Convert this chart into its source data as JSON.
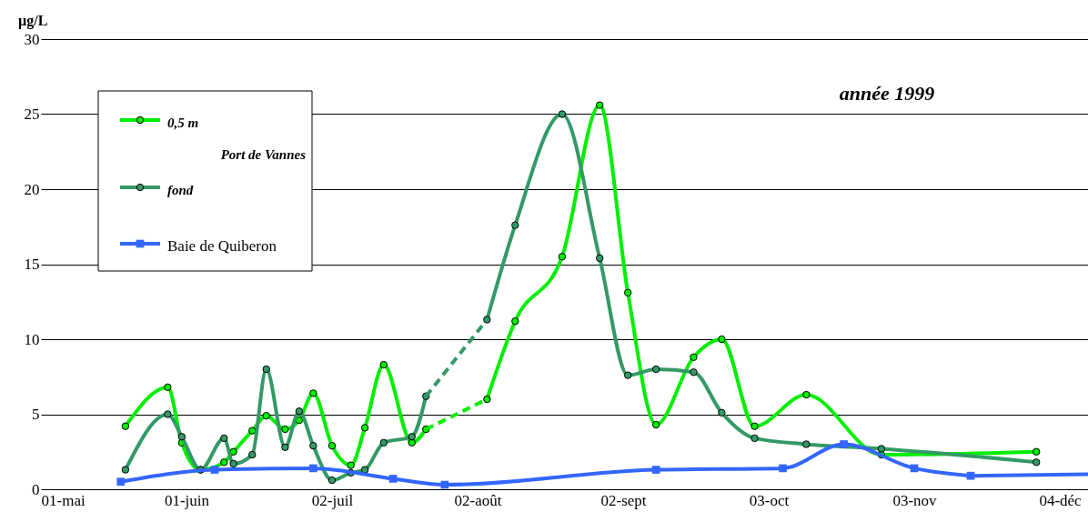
{
  "chart_data": {
    "type": "line",
    "ylabel": "µg/L",
    "legend_title": "Port de Vannes",
    "annotations": [
      "année 1999"
    ],
    "xlim": [
      "1999-05-01",
      "1999-12-10"
    ],
    "xticks": [
      {
        "value": "1999-05-01",
        "label": "01-mai"
      },
      {
        "value": "1999-06-01",
        "label": "01-juin"
      },
      {
        "value": "1999-07-02",
        "label": "02-juil"
      },
      {
        "value": "1999-08-02",
        "label": "02-août"
      },
      {
        "value": "1999-09-02",
        "label": "02-sept"
      },
      {
        "value": "1999-10-03",
        "label": "03-oct"
      },
      {
        "value": "1999-11-03",
        "label": "03-nov"
      },
      {
        "value": "1999-12-04",
        "label": "04-déc"
      }
    ],
    "ylim": [
      0,
      30
    ],
    "yticks": [
      0,
      5,
      10,
      15,
      20,
      25,
      30
    ],
    "grid": "y",
    "legend": "top left",
    "series": [
      {
        "name": "0,5 m",
        "color": "#00ee00",
        "marker": "circle",
        "line_style": "solid",
        "x": [
          "1999-05-19",
          "1999-05-28",
          "1999-05-31",
          "1999-06-04",
          "1999-06-09",
          "1999-06-11",
          "1999-06-15",
          "1999-06-18",
          "1999-06-22",
          "1999-06-25",
          "1999-06-28",
          "1999-07-02",
          "1999-07-06",
          "1999-07-09",
          "1999-07-13",
          "1999-07-19",
          "1999-07-22"
        ],
        "values": [
          4.2,
          6.8,
          3.1,
          1.3,
          1.8,
          2.5,
          3.9,
          4.9,
          4.0,
          4.6,
          6.4,
          2.9,
          1.6,
          4.1,
          8.3,
          3.1,
          4.0
        ]
      },
      {
        "color": "#00ee00",
        "marker": "none",
        "line_style": "dashed",
        "x": [
          "1999-07-22",
          "1999-08-04"
        ],
        "values": [
          4.0,
          6.0
        ]
      },
      {
        "color": "#00ee00",
        "marker": "circle",
        "line_style": "solid",
        "x": [
          "1999-08-04",
          "1999-08-10",
          "1999-08-20",
          "1999-08-28",
          "1999-09-03",
          "1999-09-09",
          "1999-09-17",
          "1999-09-23",
          "1999-09-30",
          "1999-10-11",
          "1999-10-27",
          "1999-11-29"
        ],
        "values": [
          6.0,
          11.2,
          15.5,
          25.6,
          13.1,
          4.3,
          8.8,
          10.0,
          4.2,
          6.3,
          2.3,
          2.5
        ]
      },
      {
        "name": "fond",
        "color": "#339966",
        "marker": "circle",
        "line_style": "solid",
        "x": [
          "1999-05-19",
          "1999-05-28",
          "1999-05-31",
          "1999-06-04",
          "1999-06-09",
          "1999-06-11",
          "1999-06-15",
          "1999-06-18",
          "1999-06-22",
          "1999-06-25",
          "1999-06-28",
          "1999-07-02",
          "1999-07-06",
          "1999-07-09",
          "1999-07-13",
          "1999-07-19",
          "1999-07-22"
        ],
        "values": [
          1.3,
          5.0,
          3.5,
          1.3,
          3.4,
          1.7,
          2.3,
          8.0,
          2.8,
          5.2,
          2.9,
          0.6,
          1.1,
          1.3,
          3.1,
          3.5,
          6.2
        ]
      },
      {
        "color": "#339966",
        "marker": "none",
        "line_style": "dashed",
        "x": [
          "1999-07-22",
          "1999-08-04"
        ],
        "values": [
          6.2,
          11.3
        ]
      },
      {
        "color": "#339966",
        "marker": "circle",
        "line_style": "solid",
        "x": [
          "1999-08-04",
          "1999-08-10",
          "1999-08-20",
          "1999-08-28",
          "1999-09-03",
          "1999-09-09",
          "1999-09-17",
          "1999-09-23",
          "1999-09-30",
          "1999-10-11",
          "1999-10-27",
          "1999-11-29"
        ],
        "values": [
          11.3,
          17.6,
          25.0,
          15.4,
          7.6,
          8.0,
          7.8,
          5.1,
          3.4,
          3.0,
          2.7,
          1.8
        ]
      },
      {
        "name": "Baie de Quiberon",
        "color": "#3366ff",
        "marker": "square",
        "line_style": "solid",
        "x": [
          "1999-05-18",
          "1999-06-07",
          "1999-06-28",
          "1999-07-15",
          "1999-07-26",
          "1999-09-09",
          "1999-10-06",
          "1999-10-19",
          "1999-11-03",
          "1999-11-15"
        ],
        "values": [
          0.5,
          1.3,
          1.4,
          0.7,
          0.3,
          1.3,
          1.4,
          3.0,
          1.4,
          0.9
        ]
      },
      {
        "color": "#3366ff",
        "marker": "none",
        "line_style": "solid",
        "x": [
          "1999-11-15",
          "1999-12-10"
        ],
        "values": [
          0.9,
          1.0
        ]
      }
    ]
  }
}
